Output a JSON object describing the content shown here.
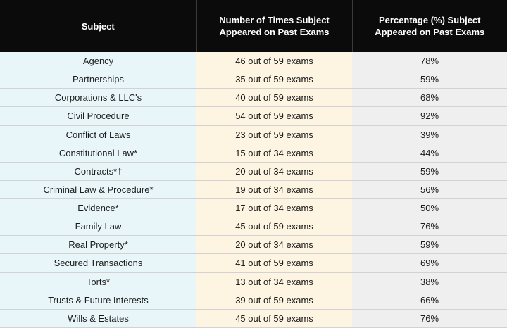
{
  "table": {
    "headers": [
      "Subject",
      "Number of Times Subject Appeared on Past Exams",
      "Percentage (%) Subject Appeared on Past Exams"
    ],
    "rows": [
      {
        "subject": "Agency",
        "times": "46 out of 59 exams",
        "percent": "78%"
      },
      {
        "subject": "Partnerships",
        "times": "35 out of 59 exams",
        "percent": "59%"
      },
      {
        "subject": "Corporations & LLC's",
        "times": "40 out of 59 exams",
        "percent": "68%"
      },
      {
        "subject": "Civil Procedure",
        "times": "54 out of 59 exams",
        "percent": "92%"
      },
      {
        "subject": "Conflict of Laws",
        "times": "23 out of 59 exams",
        "percent": "39%"
      },
      {
        "subject": "Constitutional Law*",
        "times": "15 out of 34 exams",
        "percent": "44%"
      },
      {
        "subject": "Contracts*†",
        "times": "20 out of 34 exams",
        "percent": "59%"
      },
      {
        "subject": "Criminal Law & Procedure*",
        "times": "19 out of 34 exams",
        "percent": "56%"
      },
      {
        "subject": "Evidence*",
        "times": "17 out of 34 exams",
        "percent": "50%"
      },
      {
        "subject": "Family Law",
        "times": "45 out of 59 exams",
        "percent": "76%"
      },
      {
        "subject": "Real Property*",
        "times": "20 out of 34 exams",
        "percent": "59%"
      },
      {
        "subject": "Secured Transactions",
        "times": "41 out of 59 exams",
        "percent": "69%"
      },
      {
        "subject": "Torts*",
        "times": "13 out of 34 exams",
        "percent": "38%"
      },
      {
        "subject": "Trusts & Future Interests",
        "times": "39 out of 59 exams",
        "percent": "66%"
      },
      {
        "subject": "Wills & Estates",
        "times": "45 out of 59 exams",
        "percent": "76%"
      }
    ]
  },
  "colors": {
    "header_bg": "#0b0b0b",
    "subject_col_bg": "#e9f6f9",
    "times_col_bg": "#fdf5e2",
    "percent_col_bg": "#efefef"
  }
}
